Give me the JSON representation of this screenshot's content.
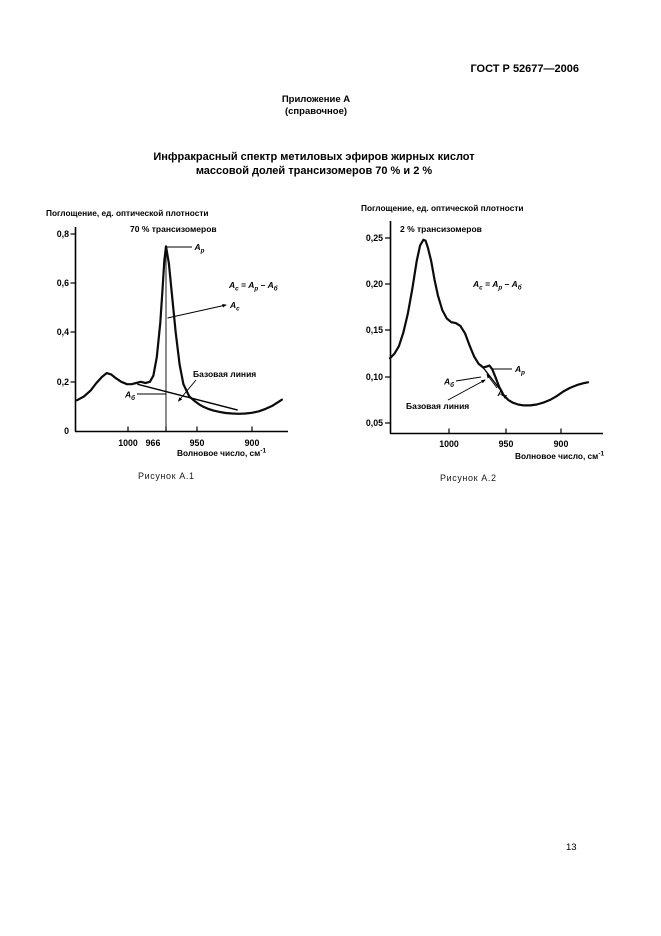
{
  "page": {
    "standard_ref": "ГОСТ Р 52677—2006",
    "appendix_title": "Приложение А",
    "appendix_subtitle": "(справочное)",
    "title_line1": "Инфракрасный спектр метиловых эфиров жирных кислот",
    "title_line2": "массовой долей трансизомеров 70 % и 2 %",
    "page_number": "13"
  },
  "fig1": {
    "y_axis_title": "Поглощение, ед. оптической плотности",
    "x_axis_title": "Волновое число, см",
    "x_axis_sup": "-1",
    "series_label": "70 % трансизомеров",
    "yticks": [
      "0,8",
      "0,6",
      "0,4",
      "0,2",
      "0"
    ],
    "xticks": [
      "1000",
      "966",
      "950",
      "900"
    ],
    "labels": {
      "peak": {
        "base": "А",
        "sub": "р"
      },
      "net": {
        "base": "А",
        "sub": "с"
      },
      "base": {
        "base": "А",
        "sub": "б"
      },
      "baseline": "Базовая линия"
    },
    "formula": {
      "p1": "А",
      "s1": "с",
      "p2": " = А",
      "s2": "р",
      "p3": " – А",
      "s3": "б"
    },
    "caption": "Рисунок А.1"
  },
  "fig2": {
    "y_axis_title": "Поглощение, ед. оптической плотности",
    "x_axis_title": "Волновое число, см",
    "x_axis_sup": "-1",
    "series_label": "2 % трансизомеров",
    "yticks": [
      "0,25",
      "0,20",
      "0,15",
      "0,10",
      "0,05"
    ],
    "xticks": [
      "1000",
      "950",
      "900"
    ],
    "labels": {
      "peak": {
        "base": "А",
        "sub": "р"
      },
      "net": {
        "base": "А",
        "sub": "с"
      },
      "base": {
        "base": "А",
        "sub": "б"
      },
      "baseline": "Базовая линия"
    },
    "formula": {
      "p1": "А",
      "s1": "с",
      "p2": " = А",
      "s2": "р",
      "p3": " – А",
      "s3": "б"
    },
    "caption": "Рисунок А.2"
  },
  "chart_data": [
    {
      "type": "line",
      "title": "ИК-спектр метиловых эфиров жирных кислот, 70 % трансизомеров",
      "xlabel": "Волновое число, см⁻¹",
      "ylabel": "Поглощение, ед. оптической плотности",
      "x_reversed": true,
      "xlim": [
        1045,
        873
      ],
      "ylim": [
        0,
        0.8
      ],
      "xticks": [
        1000,
        966,
        950,
        900
      ],
      "yticks": [
        0,
        0.2,
        0.4,
        0.6,
        0.8
      ],
      "grid": false,
      "legend": false,
      "series": [
        {
          "name": "70 % трансизомеров",
          "x": [
            1044,
            1038,
            1032,
            1027,
            1022,
            1018,
            1014,
            1010,
            1005,
            1000,
            996,
            992,
            988,
            984,
            980,
            977,
            974,
            971,
            969,
            967.5,
            966,
            964.5,
            963,
            961,
            959,
            957,
            954,
            951,
            948,
            944,
            940,
            935,
            930,
            924,
            918,
            912,
            906,
            900,
            894,
            888,
            882,
            877,
            874
          ],
          "y": [
            0.125,
            0.14,
            0.165,
            0.195,
            0.22,
            0.235,
            0.23,
            0.215,
            0.2,
            0.19,
            0.19,
            0.195,
            0.2,
            0.195,
            0.2,
            0.225,
            0.3,
            0.44,
            0.58,
            0.69,
            0.75,
            0.68,
            0.56,
            0.4,
            0.27,
            0.19,
            0.14,
            0.12,
            0.108,
            0.098,
            0.09,
            0.083,
            0.078,
            0.073,
            0.071,
            0.07,
            0.071,
            0.074,
            0.08,
            0.09,
            0.103,
            0.118,
            0.127
          ]
        }
      ],
      "peak": {
        "x": 966,
        "y": 0.75
      },
      "baseline_segment": {
        "x": [
          991,
          913
        ],
        "y": [
          0.19,
          0.085
        ]
      },
      "annotations": [
        "Ар",
        "Ас",
        "Аб",
        "Базовая линия",
        "Ас = Ар – Аб"
      ]
    },
    {
      "type": "line",
      "title": "ИК-спектр метиловых эфиров жирных кислот, 2 % трансизомеров",
      "xlabel": "Волновое число, см⁻¹",
      "ylabel": "Поглощение, ед. оптической плотности",
      "x_reversed": true,
      "xlim": [
        1053,
        876
      ],
      "ylim": [
        0.04,
        0.26
      ],
      "xticks": [
        1000,
        950,
        900
      ],
      "yticks": [
        0.05,
        0.1,
        0.15,
        0.2,
        0.25
      ],
      "grid": false,
      "legend": false,
      "series": [
        {
          "name": "2 % трансизомеров",
          "x": [
            1053,
            1049,
            1045,
            1041,
            1037,
            1033,
            1029,
            1026,
            1023,
            1021,
            1019,
            1016,
            1013,
            1010,
            1006,
            1002,
            998,
            994,
            990,
            986,
            982,
            978,
            974,
            970,
            967,
            964.5,
            962,
            959,
            956,
            952,
            948,
            944,
            939,
            934,
            928,
            922,
            916,
            910,
            904,
            898,
            892,
            886,
            880,
            876
          ],
          "y": [
            0.12,
            0.125,
            0.133,
            0.148,
            0.168,
            0.195,
            0.225,
            0.242,
            0.248,
            0.247,
            0.24,
            0.225,
            0.205,
            0.188,
            0.172,
            0.163,
            0.159,
            0.158,
            0.155,
            0.147,
            0.134,
            0.122,
            0.114,
            0.11,
            0.111,
            0.112,
            0.108,
            0.099,
            0.089,
            0.08,
            0.075,
            0.072,
            0.07,
            0.069,
            0.069,
            0.07,
            0.072,
            0.075,
            0.079,
            0.084,
            0.088,
            0.091,
            0.093,
            0.094
          ]
        }
      ],
      "baseline_segment": {
        "x": [
          972,
          955
        ],
        "y": [
          0.113,
          0.086
        ]
      },
      "annotations": [
        "Ар",
        "Ас",
        "Аб",
        "Базовая линия",
        "Ас = Ар – Аб"
      ]
    }
  ]
}
